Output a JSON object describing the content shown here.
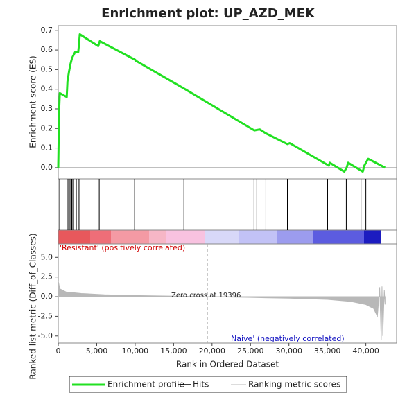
{
  "chart_data": [
    {
      "type": "line",
      "title": "Enrichment plot: UP_AZD_MEK",
      "ylabel": "Enrichment score (ES)",
      "xlim": [
        0,
        44000
      ],
      "ylim": [
        -0.057,
        0.724
      ],
      "yticks": [
        {
          "value": 0,
          "label": "0.0"
        },
        {
          "value": 0.1,
          "label": "0.1"
        },
        {
          "value": 0.2,
          "label": "0.2"
        },
        {
          "value": 0.3,
          "label": "0.3"
        },
        {
          "value": 0.4,
          "label": "0.4"
        },
        {
          "value": 0.5,
          "label": "0.5"
        },
        {
          "value": 0.6,
          "label": "0.6"
        },
        {
          "value": 0.7,
          "label": "0.7"
        }
      ],
      "x": [
        0,
        100,
        200,
        1100,
        1200,
        1400,
        1600,
        1800,
        2200,
        2600,
        2700,
        2800,
        5200,
        5400,
        10000,
        10100,
        16500,
        25500,
        26200,
        27000,
        29800,
        30100,
        35200,
        35300,
        37200,
        37500,
        37700,
        39600,
        39800,
        40300,
        42500
      ],
      "series": [
        {
          "name": "Enrichment profile",
          "color": "#22e022",
          "values": [
            0,
            0.28,
            0.38,
            0.36,
            0.44,
            0.49,
            0.53,
            0.56,
            0.59,
            0.59,
            0.63,
            0.68,
            0.62,
            0.645,
            0.55,
            0.545,
            0.4,
            0.19,
            0.195,
            0.175,
            0.12,
            0.125,
            0.01,
            0.025,
            -0.02,
            0,
            0.025,
            -0.02,
            0.01,
            0.045,
            0
          ]
        }
      ]
    },
    {
      "type": "rug",
      "name": "Hits",
      "color": "#000000",
      "xlim": [
        0,
        44000
      ],
      "x": [
        180,
        1170,
        1350,
        1530,
        1720,
        1800,
        1990,
        2350,
        2620,
        2800,
        5330,
        9930,
        16340,
        25460,
        25820,
        27000,
        29800,
        35030,
        37290,
        37470,
        39370,
        40000
      ]
    },
    {
      "type": "area",
      "ylabel": "Ranked list metric (Diff_of_Classes)",
      "xlabel": "Rank in Ordered Dataset",
      "xlim": [
        0,
        44000
      ],
      "ylim": [
        -5.9,
        6.7
      ],
      "xticks": [
        0,
        {
          "value": 5000,
          "label": "5,000"
        },
        {
          "value": 10000,
          "label": "10,000"
        },
        {
          "value": 15000,
          "label": "15,000"
        },
        {
          "value": 20000,
          "label": "20,000"
        },
        {
          "value": 25000,
          "label": "25,000"
        },
        {
          "value": 30000,
          "label": "30,000"
        },
        {
          "value": 35000,
          "label": "35,000"
        },
        {
          "value": 40000,
          "label": "40,000"
        }
      ],
      "yticks": [
        {
          "value": 5,
          "label": "5.0"
        },
        {
          "value": 2.5,
          "label": "2.5"
        },
        {
          "value": 0,
          "label": "0.0"
        },
        {
          "value": -2.5,
          "label": "-2.5"
        },
        {
          "value": -5,
          "label": "-5.0"
        }
      ],
      "x": [
        0,
        200,
        1000,
        3000,
        6000,
        10000,
        15000,
        19396,
        25000,
        30000,
        35000,
        38000,
        40000,
        41000,
        41500,
        41800,
        42000,
        42100,
        42200,
        42400,
        42500
      ],
      "series": [
        {
          "name": "Ranking metric scores",
          "color": "#b8b8b8",
          "values": [
            2.0,
            1.0,
            0.6,
            0.4,
            0.25,
            0.15,
            0.07,
            0,
            -0.1,
            -0.2,
            -0.35,
            -0.6,
            -1.0,
            -1.5,
            -2.5,
            1.2,
            -5.5,
            1.3,
            -5.0,
            0.8,
            -1.0
          ]
        }
      ],
      "zero_cross": 19396,
      "annotations": [
        "'Resistant' (positively correlated)",
        "Zero cross at 19396",
        "'Naive' (negatively correlated)"
      ]
    }
  ]
}
